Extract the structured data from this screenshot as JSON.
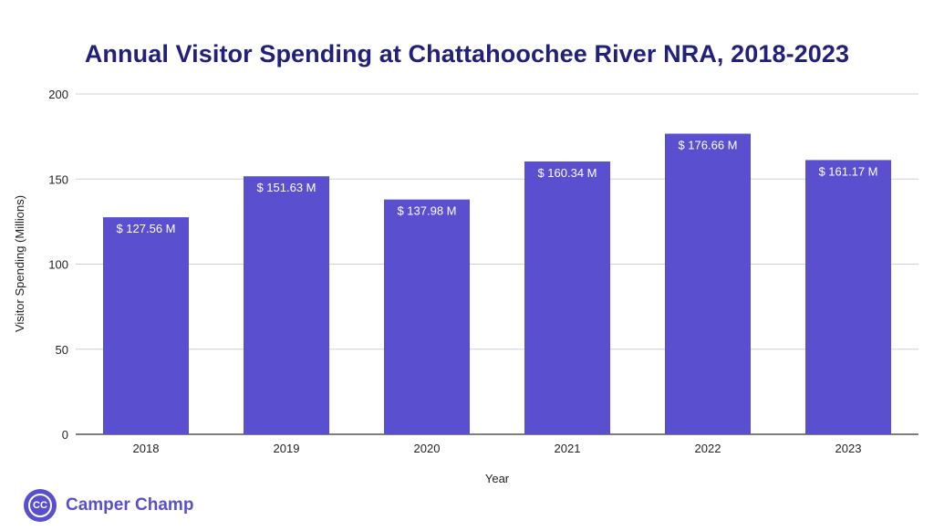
{
  "brand": {
    "name": "Camper Champ",
    "logo_text": "CC",
    "color": "#5a4fcf"
  },
  "chart_data": {
    "type": "bar",
    "title": "Annual Visitor Spending at Chattahoochee River NRA, 2018-2023",
    "xlabel": "Year",
    "ylabel": "Visitor Spending (Millions)",
    "categories": [
      "2018",
      "2019",
      "2020",
      "2021",
      "2022",
      "2023"
    ],
    "values": [
      127.56,
      151.63,
      137.98,
      160.34,
      176.66,
      161.17
    ],
    "data_labels": [
      "$ 127.56 M",
      "$ 151.63 M",
      "$ 137.98 M",
      "$ 160.34 M",
      "$ 176.66 M",
      "$ 161.17 M"
    ],
    "ylim": [
      0,
      200
    ],
    "yticks": [
      "0",
      "50",
      "100",
      "150",
      "200"
    ],
    "grid": true,
    "legend": "none",
    "bar_color": "#5a4fcf",
    "title_color": "#22207a"
  }
}
